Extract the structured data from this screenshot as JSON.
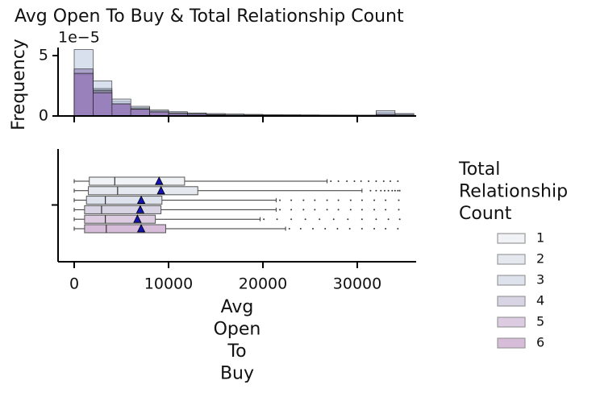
{
  "chart_data": [
    {
      "type": "histogram",
      "title": "Avg Open To Buy & Total Relationship Count",
      "ylabel": "Frequency",
      "y_offset_label": "1e−5",
      "bins": [
        0,
        2000,
        4000,
        6000,
        8000,
        10000,
        12000,
        14000,
        16000,
        18000,
        20000,
        22000,
        24000,
        26000,
        28000,
        30000,
        32000,
        34000,
        36000
      ],
      "series": [
        {
          "color": "#c9d3e6",
          "values": [
            3.8e-05,
            2.3e-05,
            1.2e-05,
            7e-06,
            4.5e-06,
            3e-06,
            2.2e-06,
            1.7e-06,
            1.4e-06,
            1.2e-06,
            1e-06,
            9e-07,
            8e-07,
            7e-07,
            7e-07,
            6e-07,
            3e-06,
            1.5e-06
          ]
        },
        {
          "color": "#b9c6df",
          "values": [
            5.5e-05,
            2.9e-05,
            1.4e-05,
            8e-06,
            5e-06,
            3.5e-06,
            2.5e-06,
            2e-06,
            1.6e-06,
            1.3e-06,
            1.1e-06,
            1e-06,
            9e-07,
            8e-07,
            7e-07,
            7e-07,
            4.5e-06,
            2e-06
          ]
        },
        {
          "color": "#a9b8d8",
          "values": [
            3.4e-05,
            2.2e-05,
            1e-05,
            6e-06,
            3.5e-06,
            2.2e-06,
            1.5e-06,
            1e-06,
            8e-07,
            6e-07,
            5e-07,
            4e-07,
            3e-07,
            3e-07,
            2e-07,
            2e-07,
            1.5e-06,
            8e-07
          ]
        },
        {
          "color": "#a49cc9",
          "values": [
            3.6e-05,
            2.1e-05,
            1e-05,
            6e-06,
            3.5e-06,
            2.2e-06,
            1.5e-06,
            1e-06,
            8e-07,
            6e-07,
            5e-07,
            4e-07,
            3e-07,
            3e-07,
            2e-07,
            2e-07,
            1.4e-06,
            7e-07
          ]
        },
        {
          "color": "#9d86bf",
          "values": [
            3.9e-05,
            2e-05,
            1e-05,
            5.5e-06,
            3.3e-06,
            2e-06,
            1.4e-06,
            1e-06,
            7e-07,
            5e-07,
            4e-07,
            3e-07,
            3e-07,
            2e-07,
            2e-07,
            2e-07,
            1.2e-06,
            6e-07
          ]
        },
        {
          "color": "#8f70b3",
          "values": [
            3.5e-05,
            1.9e-05,
            1e-05,
            5.5e-06,
            3.3e-06,
            2e-06,
            1.4e-06,
            1e-06,
            7e-07,
            5e-07,
            4e-07,
            3e-07,
            3e-07,
            2e-07,
            2e-07,
            2e-07,
            1.2e-06,
            6e-07
          ]
        }
      ],
      "xlim": [
        -1709,
        36239
      ],
      "xticks": [
        0,
        10000,
        20000,
        30000
      ],
      "ylim": [
        0,
        5.67e-05
      ],
      "yticks": [
        0,
        {
          "value": 5e-05,
          "label": "5"
        }
      ]
    },
    {
      "type": "box",
      "xlabel": "Avg Open To Buy",
      "legend_title": "Total Relationship Count",
      "legend": "right",
      "series": [
        {
          "name": "1",
          "color": "#f1f2f5",
          "whislo": 0,
          "q1": 1600,
          "median": 4300,
          "q3": 11700,
          "whishi": 26800,
          "mean": 9000,
          "outliers": [
            27200,
            28000,
            28900,
            29700,
            30400,
            31200,
            32000,
            32800,
            33500,
            34300
          ]
        },
        {
          "name": "2",
          "color": "#e5e9ef",
          "whislo": 0,
          "q1": 1500,
          "median": 4600,
          "q3": 13100,
          "whishi": 30500,
          "mean": 9200,
          "outliers": [
            31400,
            32000,
            32500,
            32900,
            33300,
            33700,
            34000,
            34300,
            34500
          ]
        },
        {
          "name": "3",
          "color": "#dde2ec",
          "whislo": 0,
          "q1": 1300,
          "median": 3300,
          "q3": 9300,
          "whishi": 21400,
          "mean": 7100,
          "outliers": [
            21800,
            23000,
            24300,
            25500,
            26800,
            28000,
            29300,
            30500,
            31800,
            33000,
            34400
          ]
        },
        {
          "name": "4",
          "color": "#d8d4e4",
          "whislo": 0,
          "q1": 1100,
          "median": 2900,
          "q3": 9200,
          "whishi": 21400,
          "mean": 7000,
          "outliers": [
            21800,
            23000,
            24300,
            25500,
            26800,
            28000,
            29300,
            30500,
            31800,
            33000,
            34400
          ]
        },
        {
          "name": "5",
          "color": "#dccbe1",
          "whislo": 0,
          "q1": 1100,
          "median": 3300,
          "q3": 8600,
          "whishi": 19700,
          "mean": 6700,
          "outliers": [
            20100,
            21500,
            23000,
            24500,
            26000,
            27500,
            29000,
            30500,
            32000,
            33300,
            34500
          ]
        },
        {
          "name": "6",
          "color": "#d6bcd8",
          "whislo": 0,
          "q1": 1100,
          "median": 3400,
          "q3": 9700,
          "whishi": 22400,
          "mean": 7100,
          "outliers": [
            22800,
            24000,
            25300,
            26600,
            27900,
            29200,
            30500,
            31800,
            33000,
            34300
          ]
        }
      ],
      "xlim": [
        -1709,
        36239
      ],
      "xticks": [
        0,
        10000,
        20000,
        30000
      ]
    }
  ]
}
